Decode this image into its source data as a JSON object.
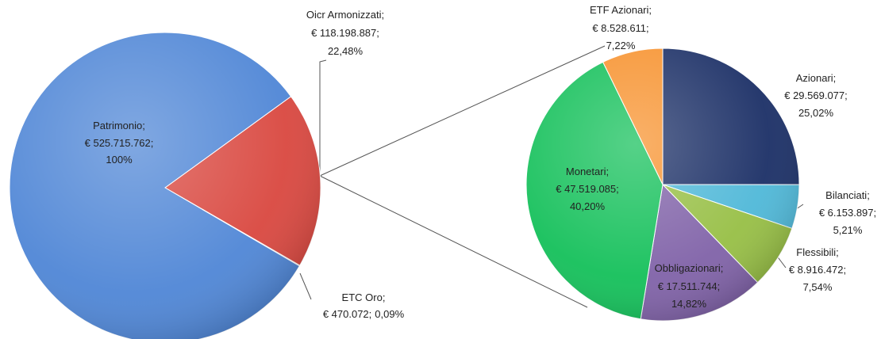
{
  "chart_data": [
    {
      "type": "pie",
      "labels": [
        "Oicr Armonizzati;",
        "ETC Oro;",
        "Patrimonio;"
      ],
      "values": [
        118198887,
        470072,
        525715762
      ],
      "value_labels": [
        "€ 118.198.887;",
        "€ 470.072;",
        "€ 525.715.762;"
      ],
      "percents": [
        22.48,
        0.09,
        100
      ],
      "percent_labels": [
        "22,48%",
        "0,09%",
        "100%"
      ],
      "colors": [
        "#d9473f",
        "#9bbb59",
        "#4f86d6"
      ]
    },
    {
      "type": "pie",
      "labels": [
        "Azionari;",
        "Bilanciati;",
        "Flessibili;",
        "Obbligazionari;",
        "Monetari;",
        "ETF Azionari;"
      ],
      "values": [
        29569077,
        6153897,
        8916472,
        17511744,
        47519085,
        8528611
      ],
      "value_labels": [
        "€ 29.569.077;",
        "€ 6.153.897;",
        "€ 8.916.472;",
        "€ 17.511.744;",
        "€ 47.519.085;",
        "€ 8.528.611;"
      ],
      "percents": [
        25.02,
        5.21,
        7.54,
        14.82,
        40.2,
        7.22
      ],
      "percent_labels": [
        "25,02%",
        "5,21%",
        "7,54%",
        "14,82%",
        "40,20%",
        "7,22%"
      ],
      "colors": [
        "#1b2f66",
        "#4fb8d8",
        "#97bf45",
        "#8062a8",
        "#14c05a",
        "#f7922e"
      ]
    }
  ]
}
